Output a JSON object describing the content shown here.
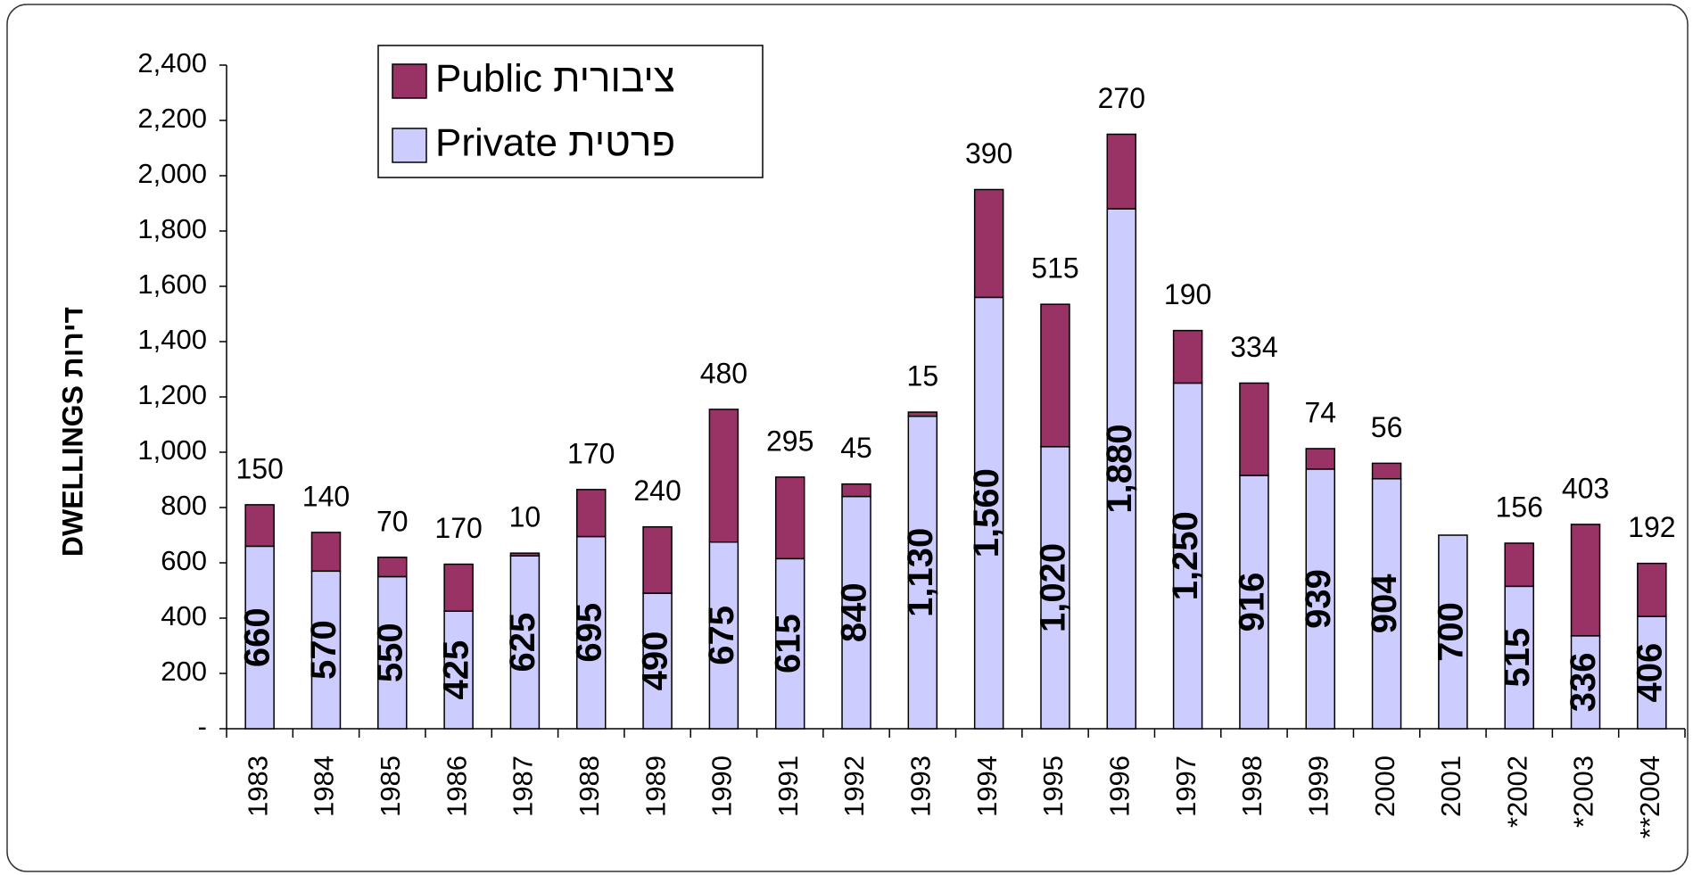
{
  "chart_data": {
    "type": "stacked_bar",
    "ylabel": "DWELLINGS דירות",
    "categories": [
      "1983",
      "1984",
      "1985",
      "1986",
      "1987",
      "1988",
      "1989",
      "1990",
      "1991",
      "1992",
      "1993",
      "1994",
      "1995",
      "1996",
      "1997",
      "1998",
      "1999",
      "2000",
      "2001",
      "*2002",
      "*2003",
      "**2004"
    ],
    "series": [
      {
        "name": "Private פרטית",
        "color": "#ccccff",
        "values": [
          660,
          570,
          550,
          425,
          625,
          695,
          490,
          675,
          615,
          840,
          1130,
          1560,
          1020,
          1880,
          1250,
          916,
          939,
          904,
          700,
          515,
          336,
          406
        ],
        "value_labels": [
          "660",
          "570",
          "550",
          "425",
          "625",
          "695",
          "490",
          "675",
          "615",
          "840",
          "1,130",
          "1,560",
          "1,020",
          "1,880",
          "1,250",
          "916",
          "939",
          "904",
          "700",
          "515",
          "336",
          "406"
        ]
      },
      {
        "name": "Public ציבורית",
        "color": "#993366",
        "values": [
          150,
          140,
          70,
          170,
          10,
          170,
          240,
          480,
          295,
          45,
          15,
          390,
          515,
          270,
          190,
          334,
          74,
          56,
          null,
          156,
          403,
          192
        ]
      }
    ],
    "ylim": [
      0,
      2400
    ],
    "yticks": [
      {
        "value": 0,
        "label": "-"
      },
      200,
      400,
      600,
      800,
      {
        "value": 1000,
        "label": "1,000"
      },
      {
        "value": 1200,
        "label": "1,200"
      },
      {
        "value": 1400,
        "label": "1,400"
      },
      {
        "value": 1600,
        "label": "1,600"
      },
      {
        "value": 1800,
        "label": "1,800"
      },
      {
        "value": 2000,
        "label": "2,000"
      },
      {
        "value": 2200,
        "label": "2,200"
      },
      {
        "value": 2400,
        "label": "2,400"
      }
    ],
    "legend": "top-left"
  }
}
